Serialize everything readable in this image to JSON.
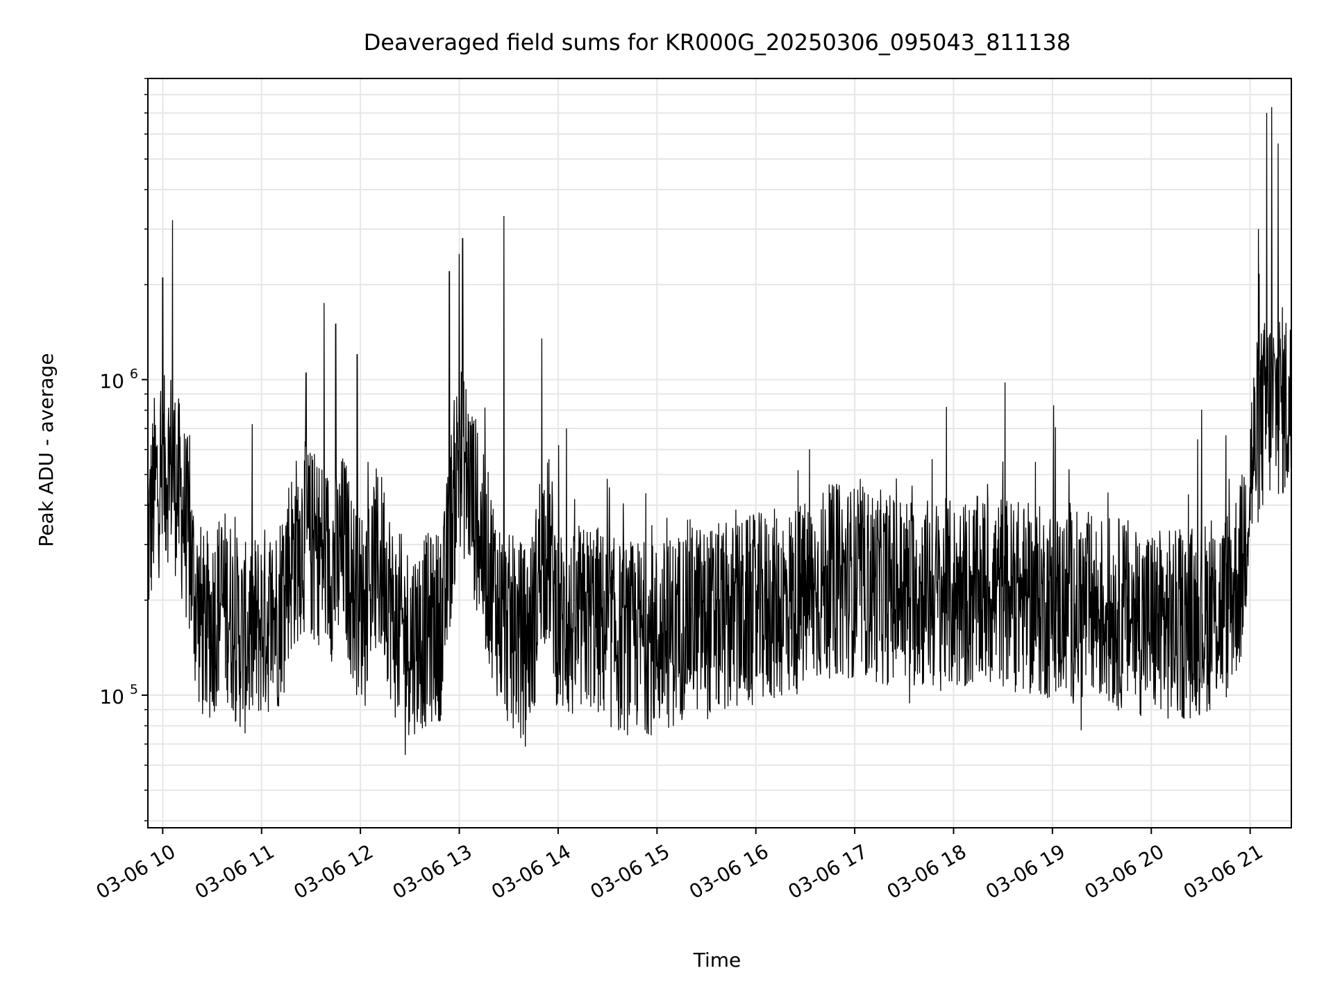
{
  "chart_data": {
    "type": "line",
    "title": "Deaveraged field sums for KR000G_20250306_095043_811138",
    "xlabel": "Time",
    "ylabel": "Peak ADU - average",
    "yscale": "log",
    "grid": true,
    "line_color": "#000000",
    "x_range": [
      "2025-03-06 09:51",
      "2025-03-06 21:25"
    ],
    "ylim": [
      38000,
      9000000
    ],
    "x_ticks": [
      {
        "t": "2025-03-06 10:00",
        "label": "03-06 10"
      },
      {
        "t": "2025-03-06 11:00",
        "label": "03-06 11"
      },
      {
        "t": "2025-03-06 12:00",
        "label": "03-06 12"
      },
      {
        "t": "2025-03-06 13:00",
        "label": "03-06 13"
      },
      {
        "t": "2025-03-06 14:00",
        "label": "03-06 14"
      },
      {
        "t": "2025-03-06 15:00",
        "label": "03-06 15"
      },
      {
        "t": "2025-03-06 16:00",
        "label": "03-06 16"
      },
      {
        "t": "2025-03-06 17:00",
        "label": "03-06 17"
      },
      {
        "t": "2025-03-06 18:00",
        "label": "03-06 18"
      },
      {
        "t": "2025-03-06 19:00",
        "label": "03-06 19"
      },
      {
        "t": "2025-03-06 20:00",
        "label": "03-06 20"
      },
      {
        "t": "2025-03-06 21:00",
        "label": "03-06 21"
      }
    ],
    "y_ticks": [
      {
        "value": 100000,
        "base": "10",
        "exp": "5"
      },
      {
        "value": 1000000,
        "base": "10",
        "exp": "6"
      }
    ],
    "series": [
      {
        "x": [
          "2025-03-06 09:51",
          "2025-03-06 09:55",
          "2025-03-06 10:00",
          "2025-03-06 10:05",
          "2025-03-06 10:10",
          "2025-03-06 10:15",
          "2025-03-06 10:20",
          "2025-03-06 10:25",
          "2025-03-06 10:30",
          "2025-03-06 10:35",
          "2025-03-06 10:40",
          "2025-03-06 10:45",
          "2025-03-06 10:50",
          "2025-03-06 11:00",
          "2025-03-06 11:10",
          "2025-03-06 11:15",
          "2025-03-06 11:20",
          "2025-03-06 11:25",
          "2025-03-06 11:30",
          "2025-03-06 11:35",
          "2025-03-06 11:40",
          "2025-03-06 11:45",
          "2025-03-06 11:50",
          "2025-03-06 11:55",
          "2025-03-06 12:00",
          "2025-03-06 12:05",
          "2025-03-06 12:10",
          "2025-03-06 12:15",
          "2025-03-06 12:20",
          "2025-03-06 12:30",
          "2025-03-06 12:40",
          "2025-03-06 12:50",
          "2025-03-06 12:55",
          "2025-03-06 13:00",
          "2025-03-06 13:05",
          "2025-03-06 13:10",
          "2025-03-06 13:15",
          "2025-03-06 13:20",
          "2025-03-06 13:25",
          "2025-03-06 13:30",
          "2025-03-06 13:40",
          "2025-03-06 13:45",
          "2025-03-06 13:50",
          "2025-03-06 13:55",
          "2025-03-06 14:00",
          "2025-03-06 14:10",
          "2025-03-06 14:20",
          "2025-03-06 14:30",
          "2025-03-06 14:40",
          "2025-03-06 14:50",
          "2025-03-06 15:00",
          "2025-03-06 15:10",
          "2025-03-06 15:20",
          "2025-03-06 15:30",
          "2025-03-06 15:45",
          "2025-03-06 16:00",
          "2025-03-06 16:15",
          "2025-03-06 16:30",
          "2025-03-06 16:45",
          "2025-03-06 17:00",
          "2025-03-06 17:15",
          "2025-03-06 17:30",
          "2025-03-06 17:45",
          "2025-03-06 18:00",
          "2025-03-06 18:15",
          "2025-03-06 18:30",
          "2025-03-06 18:45",
          "2025-03-06 19:00",
          "2025-03-06 19:15",
          "2025-03-06 19:30",
          "2025-03-06 19:45",
          "2025-03-06 20:00",
          "2025-03-06 20:15",
          "2025-03-06 20:30",
          "2025-03-06 20:45",
          "2025-03-06 20:55",
          "2025-03-06 21:00",
          "2025-03-06 21:05",
          "2025-03-06 21:10",
          "2025-03-06 21:15",
          "2025-03-06 21:20",
          "2025-03-06 21:25"
        ],
        "y": [
          300000,
          450000,
          500000,
          550000,
          430000,
          330000,
          200000,
          160000,
          170000,
          200000,
          190000,
          160000,
          150000,
          170000,
          180000,
          250000,
          280000,
          320000,
          300000,
          290000,
          270000,
          250000,
          300000,
          220000,
          190000,
          230000,
          260000,
          250000,
          170000,
          150000,
          160000,
          170000,
          350000,
          600000,
          500000,
          380000,
          280000,
          230000,
          180000,
          160000,
          150000,
          170000,
          300000,
          280000,
          170000,
          160000,
          180000,
          160000,
          150000,
          155000,
          150000,
          160000,
          180000,
          170000,
          175000,
          185000,
          195000,
          205000,
          230000,
          230000,
          220000,
          215000,
          210000,
          205000,
          210000,
          215000,
          200000,
          195000,
          190000,
          185000,
          180000,
          170000,
          165000,
          175000,
          190000,
          250000,
          500000,
          700000,
          800000,
          850000,
          850000,
          800000
        ],
        "spikes": [
          {
            "x": "2025-03-06 10:00",
            "y": 2100000
          },
          {
            "x": "2025-03-06 10:06",
            "y": 3200000
          },
          {
            "x": "2025-03-06 11:27",
            "y": 1050000
          },
          {
            "x": "2025-03-06 11:38",
            "y": 1750000
          },
          {
            "x": "2025-03-06 11:45",
            "y": 1500000
          },
          {
            "x": "2025-03-06 11:58",
            "y": 1200000
          },
          {
            "x": "2025-03-06 12:54",
            "y": 2200000
          },
          {
            "x": "2025-03-06 13:00",
            "y": 2500000
          },
          {
            "x": "2025-03-06 13:02",
            "y": 2800000
          },
          {
            "x": "2025-03-06 13:27",
            "y": 3300000
          },
          {
            "x": "2025-03-06 13:50",
            "y": 1350000
          },
          {
            "x": "2025-03-06 14:05",
            "y": 700000
          },
          {
            "x": "2025-03-06 17:47",
            "y": 560000
          },
          {
            "x": "2025-03-06 18:30",
            "y": 550000
          },
          {
            "x": "2025-03-06 19:10",
            "y": 520000
          },
          {
            "x": "2025-03-06 21:10",
            "y": 7000000
          },
          {
            "x": "2025-03-06 21:13",
            "y": 7300000
          },
          {
            "x": "2025-03-06 21:17",
            "y": 5600000
          },
          {
            "x": "2025-03-06 21:05",
            "y": 3000000
          }
        ]
      }
    ]
  }
}
